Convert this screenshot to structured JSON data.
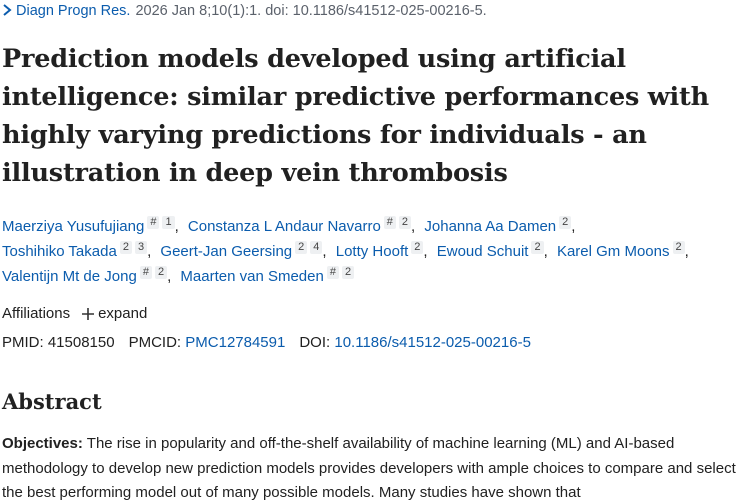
{
  "citation": {
    "journal": "Diagn Progn Res.",
    "details": "2026 Jan 8;10(1):1. doi: 10.1186/s41512-025-00216-5."
  },
  "title": "Prediction models developed using artificial intelligence: similar predictive performances with highly varying predictions for individuals - an illustration in deep vein thrombosis",
  "authors": [
    {
      "name": "Maerziya Yusufujiang",
      "sups": [
        "#",
        "1"
      ],
      "separator": ","
    },
    {
      "name": "Constanza L Andaur Navarro",
      "sups": [
        "#",
        "2"
      ],
      "separator": ","
    },
    {
      "name": "Johanna Aa Damen",
      "sups": [
        "2"
      ],
      "separator": ","
    },
    {
      "name": "Toshihiko Takada",
      "sups": [
        "2",
        "3"
      ],
      "separator": ","
    },
    {
      "name": "Geert-Jan Geersing",
      "sups": [
        "2",
        "4"
      ],
      "separator": ","
    },
    {
      "name": "Lotty Hooft",
      "sups": [
        "2"
      ],
      "separator": ","
    },
    {
      "name": "Ewoud Schuit",
      "sups": [
        "2"
      ],
      "separator": ","
    },
    {
      "name": "Karel Gm Moons",
      "sups": [
        "2"
      ],
      "separator": ","
    },
    {
      "name": "Valentijn Mt de Jong",
      "sups": [
        "#",
        "2"
      ],
      "separator": ","
    },
    {
      "name": "Maarten van Smeden",
      "sups": [
        "#",
        "2"
      ]
    }
  ],
  "affiliations": {
    "label": "Affiliations",
    "toggle": "expand"
  },
  "ids": [
    {
      "label": "PMID:",
      "value": "41508150"
    },
    {
      "label": "PMCID:",
      "value": "PMC12784591"
    },
    {
      "label": "DOI:",
      "value": "10.1186/s41512-025-00216-5"
    }
  ],
  "abstract": {
    "heading": "Abstract",
    "label": "Objectives:",
    "text": "The rise in popularity and off-the-shelf availability of machine learning (ML) and AI-based methodology to develop new prediction models provides developers with ample choices to compare and select the best performing model out of many possible models. Many studies have shown that"
  }
}
